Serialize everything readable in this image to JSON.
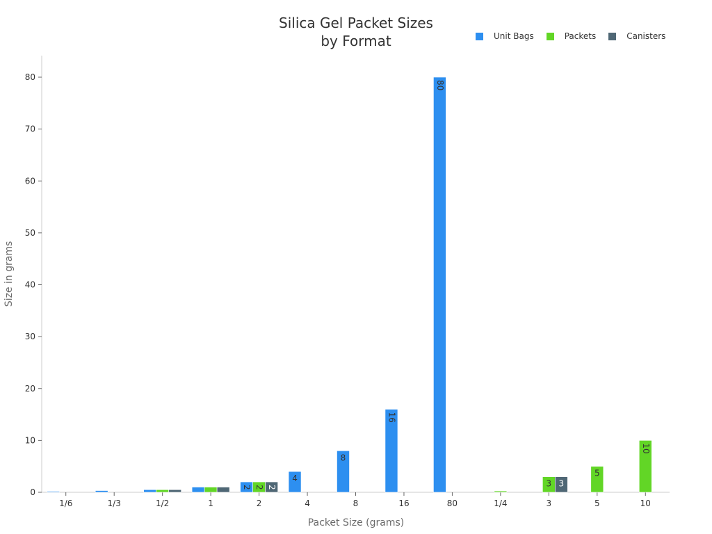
{
  "chart_data": {
    "type": "bar",
    "title": "Silica Gel Packet Sizes by Format",
    "title_lines": [
      "Silica Gel Packet Sizes",
      "by Format"
    ],
    "xlabel": "Packet Size (grams)",
    "ylabel": "Size in grams",
    "ylim": [
      0,
      84
    ],
    "yticks": [
      0,
      10,
      20,
      30,
      40,
      50,
      60,
      70,
      80
    ],
    "grid": false,
    "legend_position": "top-right",
    "categories": [
      "1/6",
      "1/3",
      "1/2",
      "1",
      "2",
      "4",
      "8",
      "16",
      "80",
      "1/4",
      "3",
      "5",
      "10"
    ],
    "series": [
      {
        "name": "Unit Bags",
        "color": "#2d8ff0",
        "values": [
          0.17,
          0.33,
          0.5,
          1,
          2,
          4,
          8,
          16,
          80,
          null,
          null,
          null,
          null
        ]
      },
      {
        "name": "Packets",
        "color": "#62d626",
        "values": [
          null,
          null,
          0.5,
          1,
          2,
          null,
          null,
          null,
          null,
          0.25,
          3,
          5,
          10
        ]
      },
      {
        "name": "Canisters",
        "color": "#4f6775",
        "values": [
          null,
          null,
          0.5,
          1,
          2,
          null,
          null,
          null,
          null,
          null,
          3,
          null,
          null
        ]
      }
    ]
  },
  "legend": {
    "items": [
      {
        "label": "Unit Bags",
        "color": "#2d8ff0"
      },
      {
        "label": "Packets",
        "color": "#62d626"
      },
      {
        "label": "Canisters",
        "color": "#4f6775"
      }
    ]
  }
}
